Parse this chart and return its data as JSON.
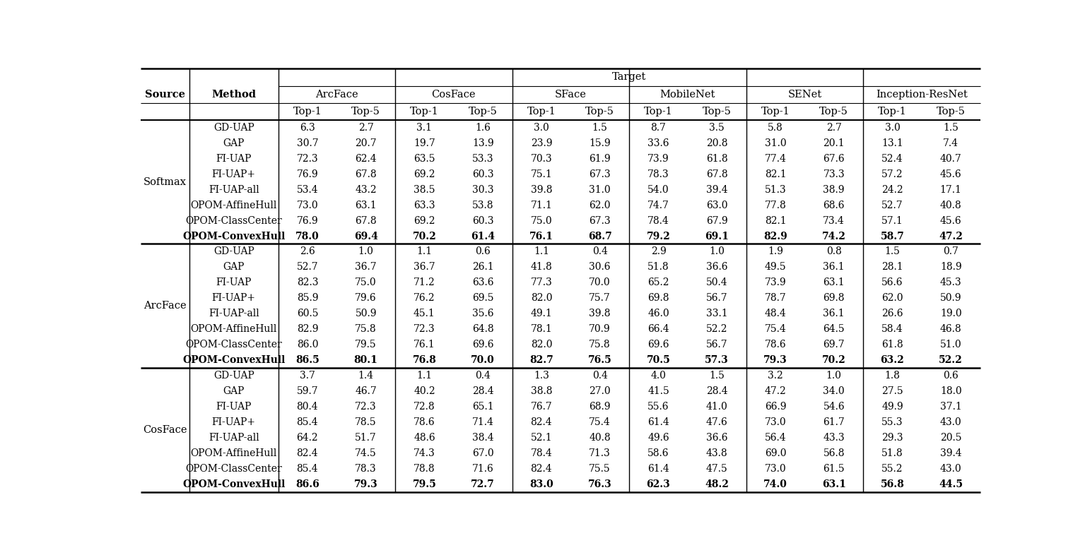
{
  "target_label": "Target",
  "source_col": "Source",
  "method_col": "Method",
  "target_models": [
    "ArcFace",
    "CosFace",
    "SFace",
    "MobileNet",
    "SENet",
    "Inception-ResNet"
  ],
  "col_labels": [
    "Top-1",
    "Top-5"
  ],
  "sources": [
    "Softmax",
    "ArcFace",
    "CosFace"
  ],
  "methods": [
    "GD-UAP",
    "GAP",
    "FI-UAP",
    "FI-UAP+",
    "FI-UAP-all",
    "OPOM-AffineHull",
    "OPOM-ClassCenter",
    "OPOM-ConvexHull"
  ],
  "data": {
    "Softmax": {
      "GD-UAP": [
        6.3,
        2.7,
        3.1,
        1.6,
        3.0,
        1.5,
        8.7,
        3.5,
        5.8,
        2.7,
        3.0,
        1.5
      ],
      "GAP": [
        30.7,
        20.7,
        19.7,
        13.9,
        23.9,
        15.9,
        33.6,
        20.8,
        31.0,
        20.1,
        13.1,
        7.4
      ],
      "FI-UAP": [
        72.3,
        62.4,
        63.5,
        53.3,
        70.3,
        61.9,
        73.9,
        61.8,
        77.4,
        67.6,
        52.4,
        40.7
      ],
      "FI-UAP+": [
        76.9,
        67.8,
        69.2,
        60.3,
        75.1,
        67.3,
        78.3,
        67.8,
        82.1,
        73.3,
        57.2,
        45.6
      ],
      "FI-UAP-all": [
        53.4,
        43.2,
        38.5,
        30.3,
        39.8,
        31.0,
        54.0,
        39.4,
        51.3,
        38.9,
        24.2,
        17.1
      ],
      "OPOM-AffineHull": [
        73.0,
        63.1,
        63.3,
        53.8,
        71.1,
        62.0,
        74.7,
        63.0,
        77.8,
        68.6,
        52.7,
        40.8
      ],
      "OPOM-ClassCenter": [
        76.9,
        67.8,
        69.2,
        60.3,
        75.0,
        67.3,
        78.4,
        67.9,
        82.1,
        73.4,
        57.1,
        45.6
      ],
      "OPOM-ConvexHull": [
        78.0,
        69.4,
        70.2,
        61.4,
        76.1,
        68.7,
        79.2,
        69.1,
        82.9,
        74.2,
        58.7,
        47.2
      ]
    },
    "ArcFace": {
      "GD-UAP": [
        2.6,
        1.0,
        1.1,
        0.6,
        1.1,
        0.4,
        2.9,
        1.0,
        1.9,
        0.8,
        1.5,
        0.7
      ],
      "GAP": [
        52.7,
        36.7,
        36.7,
        26.1,
        41.8,
        30.6,
        51.8,
        36.6,
        49.5,
        36.1,
        28.1,
        18.9
      ],
      "FI-UAP": [
        82.3,
        75.0,
        71.2,
        63.6,
        77.3,
        70.0,
        65.2,
        50.4,
        73.9,
        63.1,
        56.6,
        45.3
      ],
      "FI-UAP+": [
        85.9,
        79.6,
        76.2,
        69.5,
        82.0,
        75.7,
        69.8,
        56.7,
        78.7,
        69.8,
        62.0,
        50.9
      ],
      "FI-UAP-all": [
        60.5,
        50.9,
        45.1,
        35.6,
        49.1,
        39.8,
        46.0,
        33.1,
        48.4,
        36.1,
        26.6,
        19.0
      ],
      "OPOM-AffineHull": [
        82.9,
        75.8,
        72.3,
        64.8,
        78.1,
        70.9,
        66.4,
        52.2,
        75.4,
        64.5,
        58.4,
        46.8
      ],
      "OPOM-ClassCenter": [
        86.0,
        79.5,
        76.1,
        69.6,
        82.0,
        75.8,
        69.6,
        56.7,
        78.6,
        69.7,
        61.8,
        51.0
      ],
      "OPOM-ConvexHull": [
        86.5,
        80.1,
        76.8,
        70.0,
        82.7,
        76.5,
        70.5,
        57.3,
        79.3,
        70.2,
        63.2,
        52.2
      ]
    },
    "CosFace": {
      "GD-UAP": [
        3.7,
        1.4,
        1.1,
        0.4,
        1.3,
        0.4,
        4.0,
        1.5,
        3.2,
        1.0,
        1.8,
        0.6
      ],
      "GAP": [
        59.7,
        46.7,
        40.2,
        28.4,
        38.8,
        27.0,
        41.5,
        28.4,
        47.2,
        34.0,
        27.5,
        18.0
      ],
      "FI-UAP": [
        80.4,
        72.3,
        72.8,
        65.1,
        76.7,
        68.9,
        55.6,
        41.0,
        66.9,
        54.6,
        49.9,
        37.1
      ],
      "FI-UAP+": [
        85.4,
        78.5,
        78.6,
        71.4,
        82.4,
        75.4,
        61.4,
        47.6,
        73.0,
        61.7,
        55.3,
        43.0
      ],
      "FI-UAP-all": [
        64.2,
        51.7,
        48.6,
        38.4,
        52.1,
        40.8,
        49.6,
        36.6,
        56.4,
        43.3,
        29.3,
        20.5
      ],
      "OPOM-AffineHull": [
        82.4,
        74.5,
        74.3,
        67.0,
        78.4,
        71.3,
        58.6,
        43.8,
        69.0,
        56.8,
        51.8,
        39.4
      ],
      "OPOM-ClassCenter": [
        85.4,
        78.3,
        78.8,
        71.6,
        82.4,
        75.5,
        61.4,
        47.5,
        73.0,
        61.5,
        55.2,
        43.0
      ],
      "OPOM-ConvexHull": [
        86.6,
        79.3,
        79.5,
        72.7,
        83.0,
        76.3,
        62.3,
        48.2,
        74.0,
        63.1,
        56.8,
        44.5
      ]
    }
  },
  "bg_color": "#ffffff"
}
